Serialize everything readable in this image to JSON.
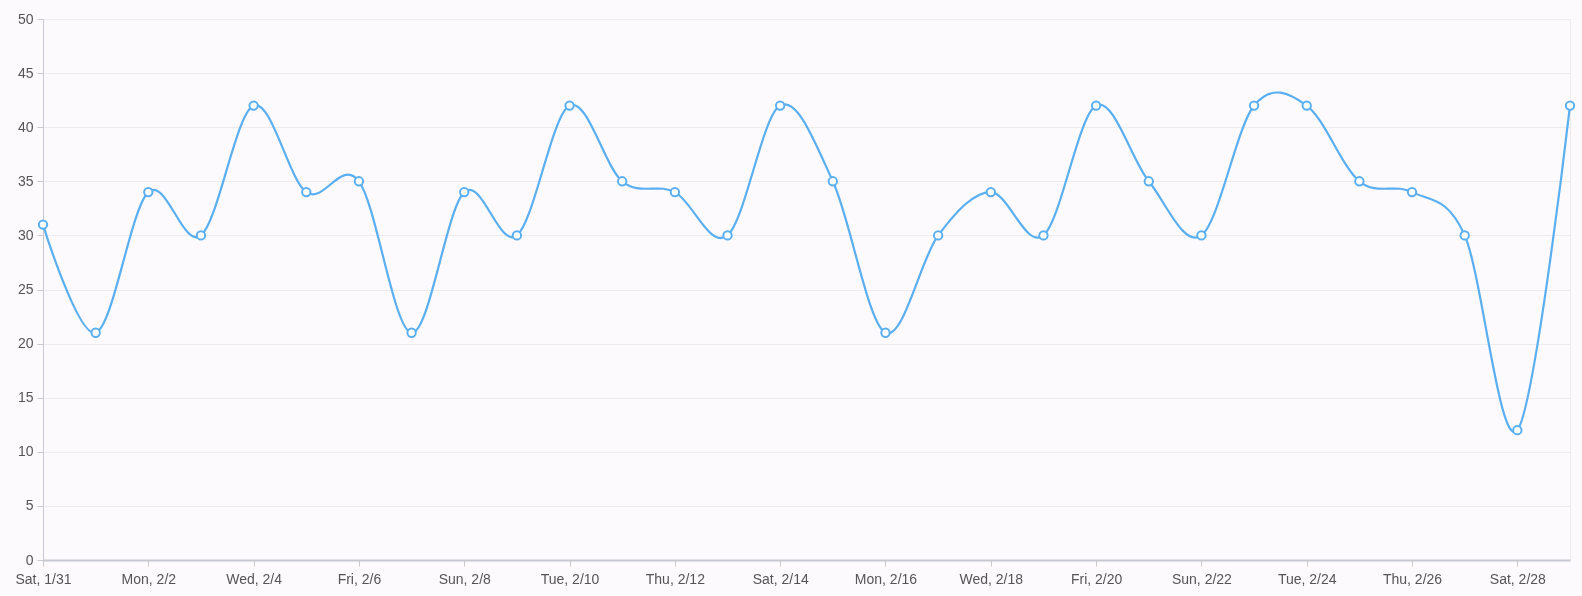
{
  "chart_data": {
    "type": "line",
    "x": [
      "--01-31",
      "--02-01",
      "--02-02",
      "--02-03",
      "--02-04",
      "--02-05",
      "--02-06",
      "--02-07",
      "--02-08",
      "--02-09",
      "--02-10",
      "--02-11",
      "--02-12",
      "--02-13",
      "--02-14",
      "--02-15",
      "--02-16",
      "--02-17",
      "--02-18",
      "--02-19",
      "--02-20",
      "--02-21",
      "--02-22",
      "--02-23",
      "--02-24",
      "--02-25",
      "--02-26",
      "--02-27",
      "--02-28",
      "--03-01"
    ],
    "series": [
      {
        "color": "#5aaff0",
        "values": [
          31,
          21,
          34,
          30,
          42,
          34,
          35,
          21,
          34,
          30,
          42,
          35,
          34,
          30,
          42,
          35,
          21,
          30,
          34,
          30,
          42,
          35,
          30,
          42,
          42,
          35,
          34,
          30,
          12,
          42
        ]
      }
    ],
    "xlim": [
      "--01-31",
      "--03-01"
    ],
    "xticks": [
      {
        "value": "--01-31",
        "label": "Sat, 1/31"
      },
      {
        "value": "--02-02",
        "label": "Mon, 2/2"
      },
      {
        "value": "--02-04",
        "label": "Wed, 2/4"
      },
      {
        "value": "--02-06",
        "label": "Fri, 2/6"
      },
      {
        "value": "--02-08",
        "label": "Sun, 2/8"
      },
      {
        "value": "--02-10",
        "label": "Tue, 2/10"
      },
      {
        "value": "--02-12",
        "label": "Thu, 2/12"
      },
      {
        "value": "--02-14",
        "label": "Sat, 2/14"
      },
      {
        "value": "--02-16",
        "label": "Mon, 2/16"
      },
      {
        "value": "--02-18",
        "label": "Wed, 2/18"
      },
      {
        "value": "--02-20",
        "label": "Fri, 2/20"
      },
      {
        "value": "--02-22",
        "label": "Sun, 2/22"
      },
      {
        "value": "--02-24",
        "label": "Tue, 2/24"
      },
      {
        "value": "--02-26",
        "label": "Thu, 2/26"
      },
      {
        "value": "--02-28",
        "label": "Sat, 2/28"
      }
    ],
    "ylim": [
      0,
      50
    ],
    "yticks": [
      0,
      5,
      10,
      15,
      20,
      25,
      30,
      35,
      40,
      45,
      50
    ],
    "grid": "y",
    "marker": "circle",
    "line_style": "solid"
  }
}
